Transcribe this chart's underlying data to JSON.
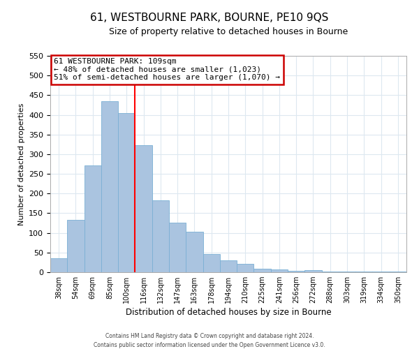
{
  "title": "61, WESTBOURNE PARK, BOURNE, PE10 9QS",
  "subtitle": "Size of property relative to detached houses in Bourne",
  "xlabel": "Distribution of detached houses by size in Bourne",
  "ylabel": "Number of detached properties",
  "bar_labels": [
    "38sqm",
    "54sqm",
    "69sqm",
    "85sqm",
    "100sqm",
    "116sqm",
    "132sqm",
    "147sqm",
    "163sqm",
    "178sqm",
    "194sqm",
    "210sqm",
    "225sqm",
    "241sqm",
    "256sqm",
    "272sqm",
    "288sqm",
    "303sqm",
    "319sqm",
    "334sqm",
    "350sqm"
  ],
  "bar_heights": [
    35,
    133,
    272,
    435,
    405,
    323,
    182,
    126,
    103,
    46,
    30,
    21,
    8,
    7,
    3,
    5,
    2,
    1,
    1,
    1,
    1
  ],
  "bar_color": "#aac4e0",
  "bar_edge_color": "#7aafd4",
  "vline_x": 4.5,
  "vline_color": "red",
  "annotation_title": "61 WESTBOURNE PARK: 109sqm",
  "annotation_line1": "← 48% of detached houses are smaller (1,023)",
  "annotation_line2": "51% of semi-detached houses are larger (1,070) →",
  "annotation_box_color": "#ffffff",
  "annotation_box_edge": "#cc0000",
  "ylim": [
    0,
    550
  ],
  "yticks": [
    0,
    50,
    100,
    150,
    200,
    250,
    300,
    350,
    400,
    450,
    500,
    550
  ],
  "footnote1": "Contains HM Land Registry data © Crown copyright and database right 2024.",
  "footnote2": "Contains public sector information licensed under the Open Government Licence v3.0.",
  "grid_color": "#dde8f0",
  "title_fontsize": 11,
  "subtitle_fontsize": 9,
  "xlabel_fontsize": 8.5,
  "ylabel_fontsize": 8,
  "tick_fontsize": 8,
  "xtick_fontsize": 7,
  "footnote_fontsize": 5.5,
  "ann_fontsize": 8
}
